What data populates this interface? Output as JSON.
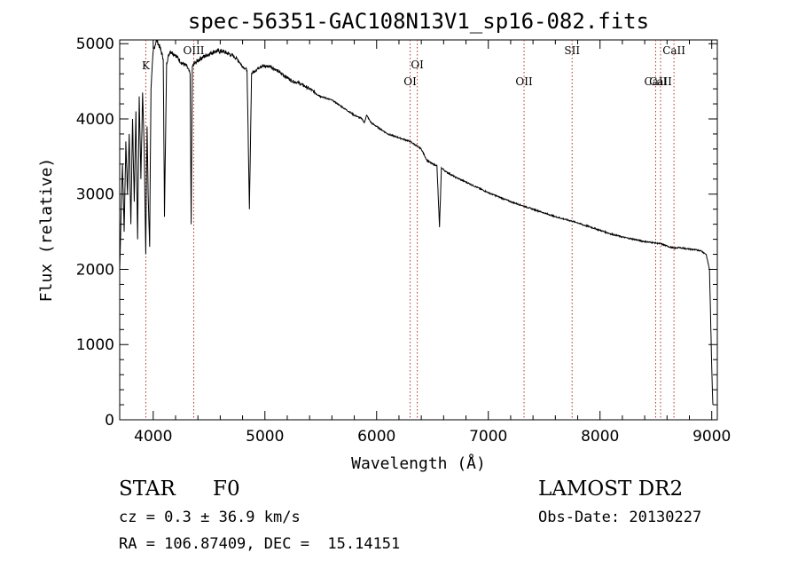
{
  "chart_data": {
    "type": "line",
    "title": "spec-56351-GAC108N13V1_sp16-082.fits",
    "xlabel": "Wavelength (Å)",
    "ylabel": "Flux (relative)",
    "xlim": [
      3700,
      9050
    ],
    "ylim": [
      0,
      5050
    ],
    "xticks": [
      4000,
      5000,
      6000,
      7000,
      8000,
      9000
    ],
    "yticks": [
      0,
      1000,
      2000,
      3000,
      4000,
      5000
    ],
    "grid": false,
    "series": [
      {
        "color": "#000000",
        "x": [
          3700,
          3712,
          3725,
          3740,
          3755,
          3770,
          3785,
          3800,
          3815,
          3830,
          3845,
          3860,
          3875,
          3890,
          3905,
          3920,
          3933,
          3945,
          3955,
          3968,
          3980,
          4000,
          4030,
          4060,
          4090,
          4101,
          4120,
          4150,
          4200,
          4250,
          4300,
          4330,
          4340,
          4350,
          4380,
          4420,
          4480,
          4550,
          4620,
          4700,
          4750,
          4800,
          4840,
          4861,
          4880,
          4920,
          4960,
          5050,
          5100,
          5150,
          5200,
          5250,
          5300,
          5400,
          5500,
          5600,
          5700,
          5800,
          5870,
          5890,
          5910,
          5950,
          6000,
          6100,
          6200,
          6300,
          6400,
          6450,
          6500,
          6540,
          6563,
          6580,
          6620,
          6700,
          6800,
          6900,
          7000,
          7100,
          7200,
          7300,
          7400,
          7500,
          7600,
          7700,
          7800,
          7850,
          7900,
          8000,
          8100,
          8200,
          8300,
          8400,
          8500,
          8542,
          8600,
          8662,
          8700,
          8800,
          8900,
          8950,
          8980,
          9000,
          9010
        ],
        "y": [
          2000,
          2700,
          3400,
          2500,
          3700,
          3000,
          3800,
          2600,
          4000,
          2900,
          4100,
          2400,
          4300,
          3200,
          4350,
          3600,
          2200,
          3900,
          3000,
          2300,
          4400,
          4900,
          5050,
          4950,
          4800,
          2700,
          4750,
          4900,
          4850,
          4750,
          4700,
          4600,
          2600,
          4700,
          4750,
          4800,
          4850,
          4900,
          4900,
          4850,
          4800,
          4700,
          4650,
          2800,
          4600,
          4650,
          4700,
          4700,
          4650,
          4600,
          4550,
          4500,
          4480,
          4400,
          4300,
          4250,
          4150,
          4050,
          4000,
          3950,
          4050,
          3950,
          3900,
          3800,
          3750,
          3700,
          3600,
          3450,
          3400,
          3380,
          2560,
          3350,
          3300,
          3230,
          3160,
          3090,
          3020,
          2960,
          2900,
          2850,
          2800,
          2750,
          2700,
          2660,
          2620,
          2590,
          2570,
          2520,
          2470,
          2430,
          2400,
          2370,
          2350,
          2340,
          2310,
          2280,
          2290,
          2270,
          2250,
          2200,
          2000,
          700,
          200
        ]
      }
    ],
    "line_markers": [
      {
        "label": "K",
        "x": 3934,
        "row": 0
      },
      {
        "label": "OIII",
        "x": 4363,
        "row": 1
      },
      {
        "label": "OI",
        "x": 6300,
        "row": 2
      },
      {
        "label": "OI",
        "x": 6364,
        "row": 3
      },
      {
        "label": "OII",
        "x": 7320,
        "row": 2
      },
      {
        "label": "SII",
        "x": 7750,
        "row": 1
      },
      {
        "label": "CaII",
        "x": 8498,
        "row": 2
      },
      {
        "label": "CaII",
        "x": 8542,
        "row": 4
      },
      {
        "label": "CaII",
        "x": 8662,
        "row": 1
      }
    ]
  },
  "info": {
    "object_class": "STAR",
    "subclass": "F0",
    "survey": "LAMOST DR2",
    "cz_line": "cz = 0.3 ± 36.9 km/s",
    "obs_date_line": "Obs-Date: 20130227",
    "coord_line": "RA = 106.87409, DEC =  15.14151"
  }
}
